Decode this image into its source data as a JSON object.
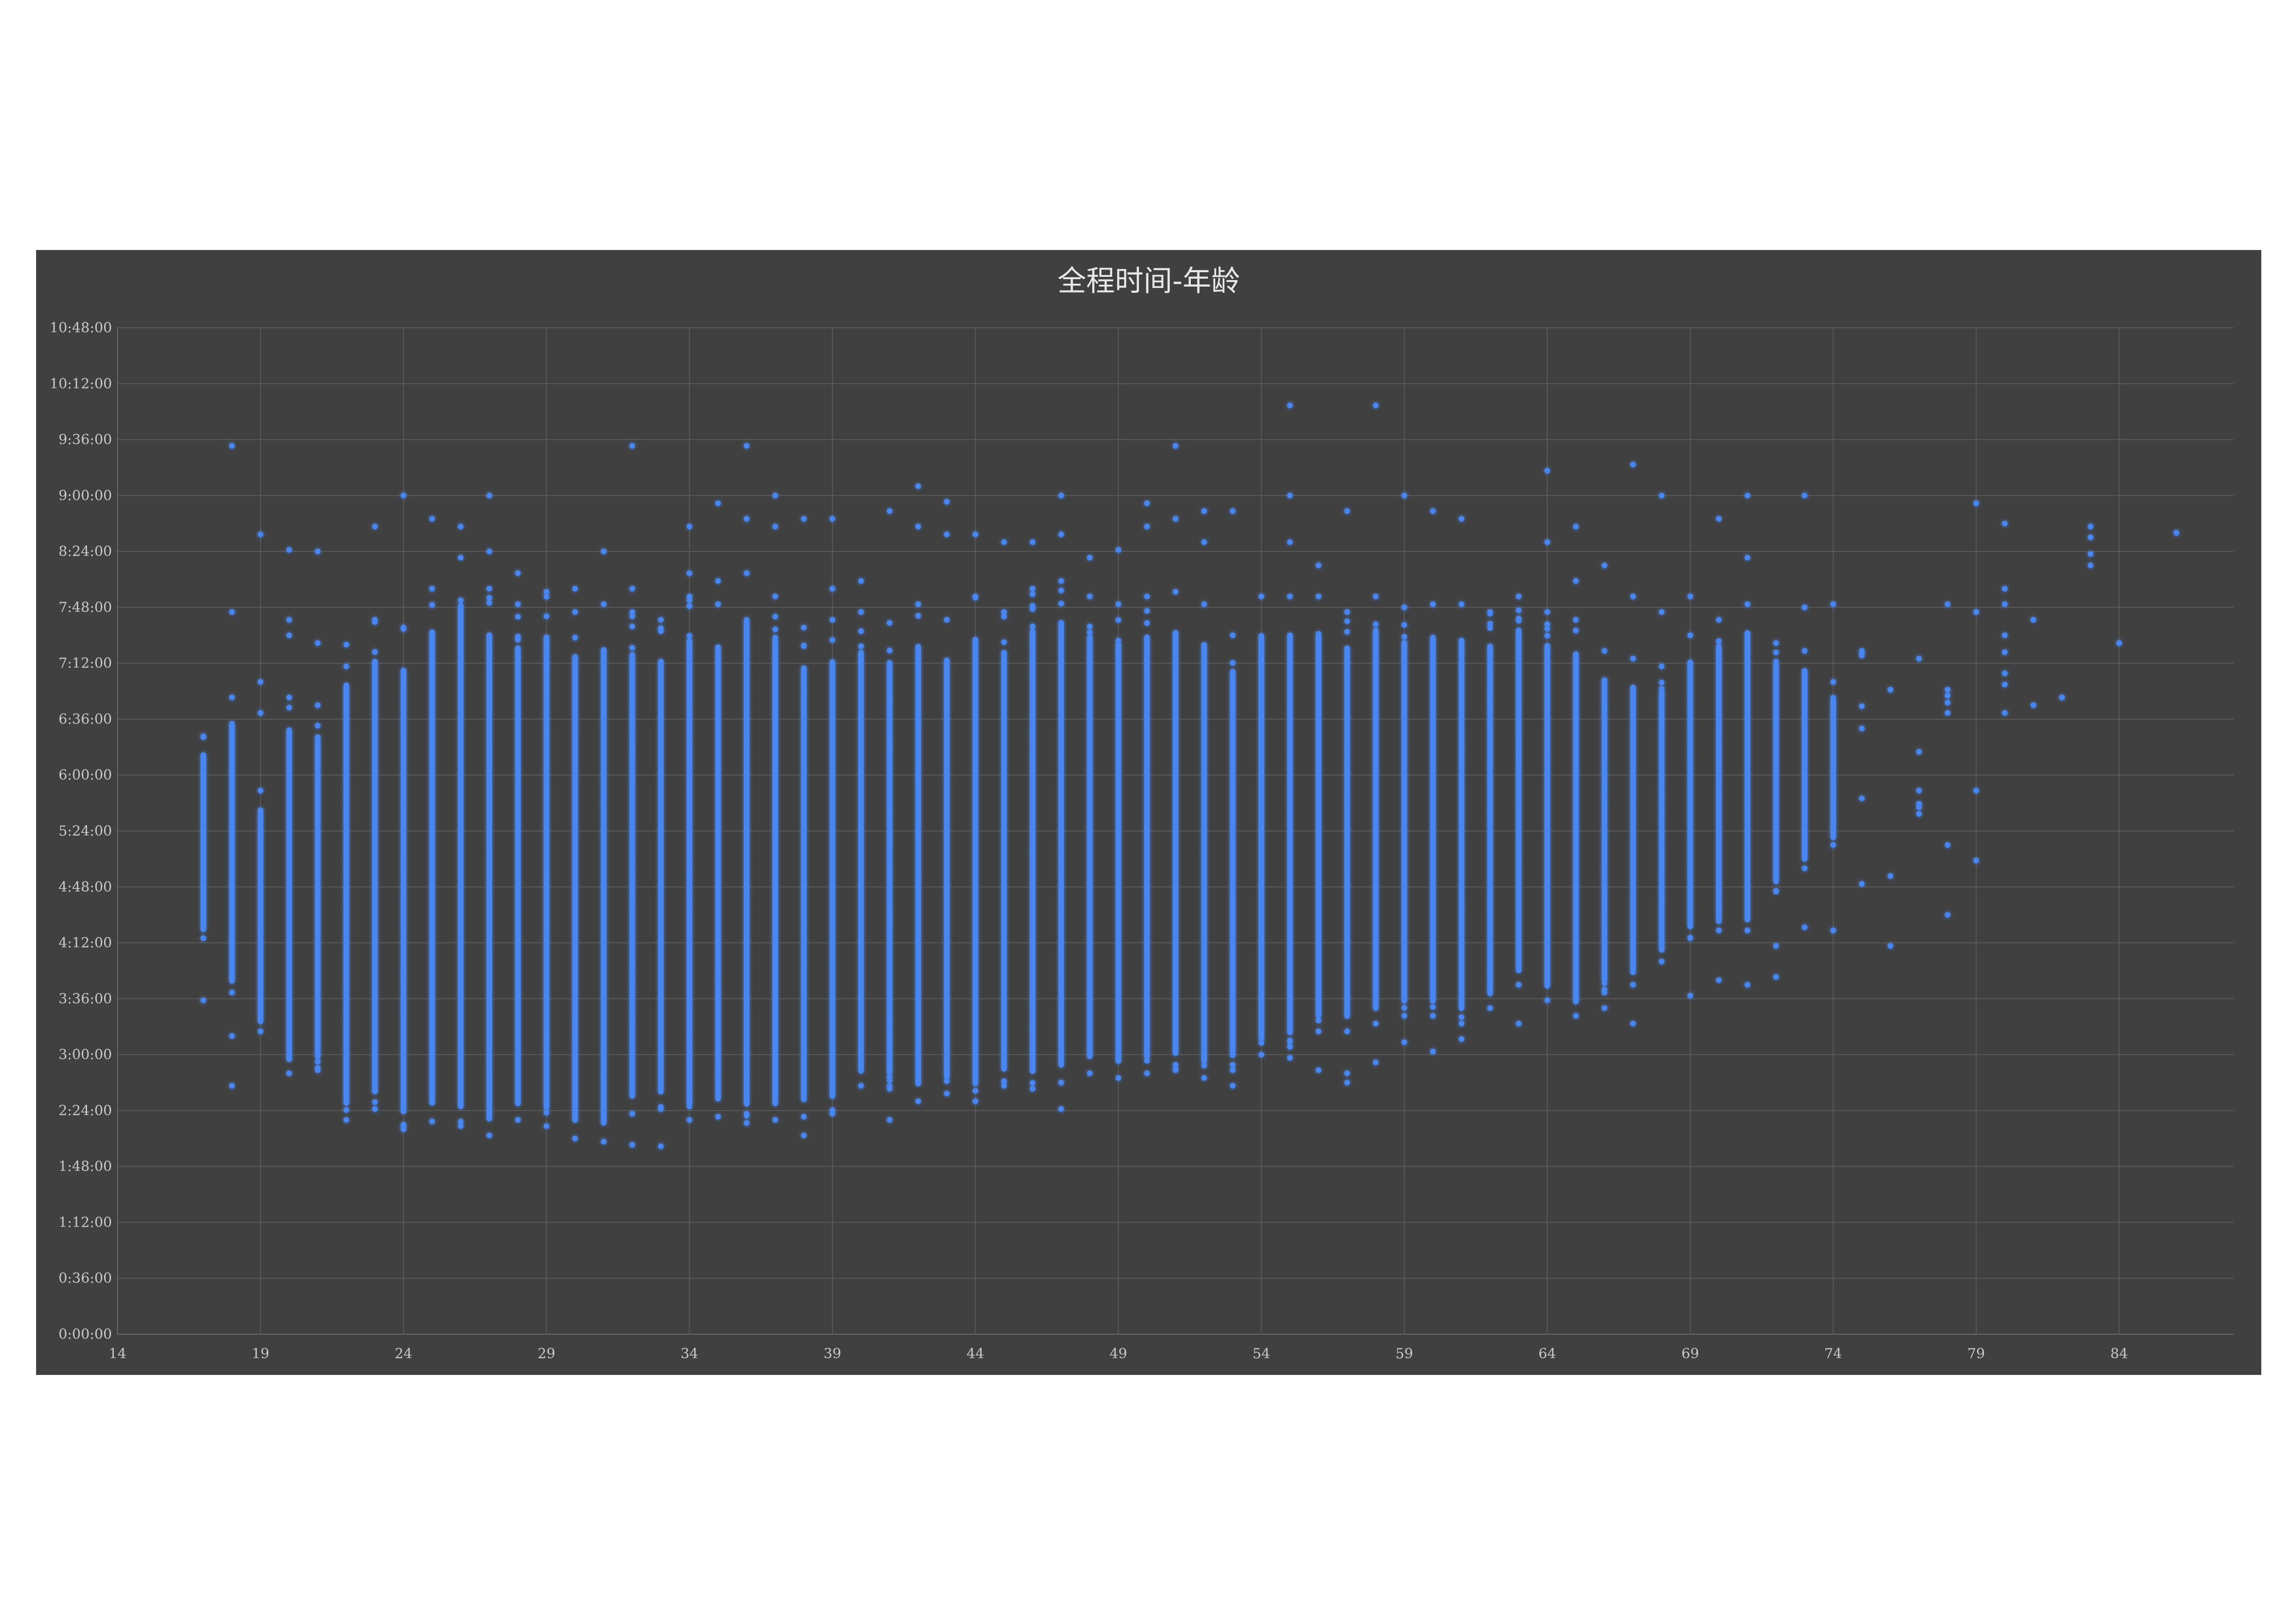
{
  "chart_data": {
    "type": "scatter",
    "title": "全程时间-年龄",
    "xlabel": "",
    "ylabel": "",
    "xlim": [
      14,
      88
    ],
    "ylim_seconds": [
      0,
      38880
    ],
    "x_ticks": [
      14,
      19,
      24,
      29,
      34,
      39,
      44,
      49,
      54,
      59,
      64,
      69,
      74,
      79,
      84
    ],
    "y_ticks": [
      "0:00:00",
      "0:36:00",
      "1:12:00",
      "1:48:00",
      "2:24:00",
      "3:00:00",
      "3:36:00",
      "4:12:00",
      "4:48:00",
      "5:24:00",
      "6:00:00",
      "6:36:00",
      "7:12:00",
      "7:48:00",
      "8:24:00",
      "9:00:00",
      "9:36:00",
      "10:12:00",
      "10:48:00"
    ],
    "grid": true,
    "legend": "none",
    "marker_color": "#4a86f0",
    "glow_color": "#2e5fd0",
    "series": [
      {
        "points_by_age": [
          {
            "age": 17,
            "min": "4:15:00",
            "max": "6:25:00",
            "outliers": [
              "3:35:00"
            ]
          },
          {
            "age": 18,
            "min": "3:40:00",
            "max": "6:50:00",
            "outliers": [
              "2:40:00",
              "3:12:00",
              "7:45:00",
              "9:32:00"
            ]
          },
          {
            "age": 19,
            "min": "3:15:00",
            "max": "5:50:00",
            "outliers": [
              "6:40:00",
              "7:00:00",
              "8:35:00"
            ]
          },
          {
            "age": 20,
            "min": "2:48:00",
            "max": "6:50:00",
            "outliers": [
              "7:30:00",
              "7:40:00",
              "8:25:00"
            ]
          },
          {
            "age": 21,
            "min": "2:50:00",
            "max": "6:45:00",
            "outliers": [
              "7:25:00",
              "8:24:00"
            ]
          },
          {
            "age": 22,
            "min": "2:18:00",
            "max": "7:24:00",
            "outliers": []
          },
          {
            "age": 23,
            "min": "2:25:00",
            "max": "7:40:00",
            "outliers": [
              "8:40:00"
            ]
          },
          {
            "age": 24,
            "min": "2:12:00",
            "max": "7:35:00",
            "outliers": [
              "9:00:00"
            ]
          },
          {
            "age": 25,
            "min": "2:17:00",
            "max": "8:00:00",
            "outliers": [
              "8:45:00"
            ]
          },
          {
            "age": 26,
            "min": "2:14:00",
            "max": "8:20:00",
            "outliers": [
              "8:40:00"
            ]
          },
          {
            "age": 27,
            "min": "2:08:00",
            "max": "8:00:00",
            "outliers": [
              "8:24:00",
              "9:00:00"
            ]
          },
          {
            "age": 28,
            "min": "2:18:00",
            "max": "7:50:00",
            "outliers": [
              "8:10:00"
            ]
          },
          {
            "age": 29,
            "min": "2:14:00",
            "max": "7:58:00",
            "outliers": []
          },
          {
            "age": 30,
            "min": "2:06:00",
            "max": "7:45:00",
            "outliers": [
              "8:00:00"
            ]
          },
          {
            "age": 31,
            "min": "2:04:00",
            "max": "7:50:00",
            "outliers": [
              "8:24:00"
            ]
          },
          {
            "age": 32,
            "min": "2:22:00",
            "max": "7:45:00",
            "outliers": [
              "2:02:00",
              "8:00:00",
              "9:32:00"
            ]
          },
          {
            "age": 33,
            "min": "2:25:00",
            "max": "7:40:00",
            "outliers": [
              "2:01:00"
            ]
          },
          {
            "age": 34,
            "min": "2:18:00",
            "max": "7:55:00",
            "outliers": [
              "8:10:00",
              "8:40:00"
            ]
          },
          {
            "age": 35,
            "min": "2:20:00",
            "max": "7:50:00",
            "outliers": [
              "8:05:00",
              "8:55:00"
            ]
          },
          {
            "age": 36,
            "min": "2:16:00",
            "max": "8:10:00",
            "outliers": [
              "8:45:00",
              "9:32:00"
            ]
          },
          {
            "age": 37,
            "min": "2:18:00",
            "max": "7:55:00",
            "outliers": [
              "8:40:00",
              "9:00:00"
            ]
          },
          {
            "age": 38,
            "min": "2:20:00",
            "max": "7:35:00",
            "outliers": [
              "2:08:00",
              "8:45:00"
            ]
          },
          {
            "age": 39,
            "min": "2:22:00",
            "max": "7:40:00",
            "outliers": [
              "8:00:00",
              "8:45:00"
            ]
          },
          {
            "age": 40,
            "min": "2:40:00",
            "max": "7:45:00",
            "outliers": [
              "8:05:00"
            ]
          },
          {
            "age": 41,
            "min": "2:38:00",
            "max": "7:38:00",
            "outliers": [
              "2:18:00",
              "8:50:00"
            ]
          },
          {
            "age": 42,
            "min": "2:30:00",
            "max": "7:50:00",
            "outliers": [
              "8:40:00",
              "9:06:00"
            ]
          },
          {
            "age": 43,
            "min": "2:35:00",
            "max": "7:40:00",
            "outliers": [
              "8:35:00",
              "8:56:00"
            ]
          },
          {
            "age": 44,
            "min": "2:30:00",
            "max": "7:55:00",
            "outliers": [
              "8:35:00"
            ]
          },
          {
            "age": 45,
            "min": "2:40:00",
            "max": "7:45:00",
            "outliers": [
              "8:30:00"
            ]
          },
          {
            "age": 46,
            "min": "2:38:00",
            "max": "8:00:00",
            "outliers": [
              "8:30:00"
            ]
          },
          {
            "age": 47,
            "min": "2:42:00",
            "max": "8:05:00",
            "outliers": [
              "2:25:00",
              "8:35:00",
              "9:00:00"
            ]
          },
          {
            "age": 48,
            "min": "2:48:00",
            "max": "7:55:00",
            "outliers": [
              "8:20:00"
            ]
          },
          {
            "age": 49,
            "min": "2:45:00",
            "max": "7:50:00",
            "outliers": [
              "8:25:00"
            ]
          },
          {
            "age": 50,
            "min": "2:48:00",
            "max": "7:55:00",
            "outliers": [
              "8:40:00",
              "8:55:00"
            ]
          },
          {
            "age": 51,
            "min": "2:50:00",
            "max": "7:58:00",
            "outliers": [
              "8:45:00",
              "9:32:00"
            ]
          },
          {
            "age": 52,
            "min": "2:45:00",
            "max": "7:50:00",
            "outliers": [
              "8:30:00",
              "8:50:00"
            ]
          },
          {
            "age": 53,
            "min": "2:50:00",
            "max": "7:30:00",
            "outliers": [
              "2:40:00",
              "8:50:00"
            ]
          },
          {
            "age": 54,
            "min": "3:00:00",
            "max": "7:55:00",
            "outliers": []
          },
          {
            "age": 55,
            "min": "3:05:00",
            "max": "7:55:00",
            "outliers": [
              "2:58:00",
              "8:30:00",
              "9:00:00",
              "9:58:00"
            ]
          },
          {
            "age": 56,
            "min": "3:15:00",
            "max": "7:55:00",
            "outliers": [
              "2:50:00",
              "8:15:00"
            ]
          },
          {
            "age": 57,
            "min": "3:15:00",
            "max": "7:45:00",
            "outliers": [
              "2:42:00",
              "2:48:00",
              "8:50:00"
            ]
          },
          {
            "age": 58,
            "min": "3:20:00",
            "max": "7:55:00",
            "outliers": [
              "2:55:00",
              "9:58:00"
            ]
          },
          {
            "age": 59,
            "min": "3:25:00",
            "max": "7:48:00",
            "outliers": [
              "3:08:00",
              "9:00:00"
            ]
          },
          {
            "age": 60,
            "min": "3:25:00",
            "max": "7:50:00",
            "outliers": [
              "3:02:00",
              "8:50:00"
            ]
          },
          {
            "age": 61,
            "min": "3:20:00",
            "max": "7:50:00",
            "outliers": [
              "3:10:00",
              "8:45:00"
            ]
          },
          {
            "age": 62,
            "min": "3:30:00",
            "max": "7:45:00",
            "outliers": []
          },
          {
            "age": 63,
            "min": "3:45:00",
            "max": "7:55:00",
            "outliers": [
              "3:20:00"
            ]
          },
          {
            "age": 64,
            "min": "3:35:00",
            "max": "7:45:00",
            "outliers": [
              "8:30:00",
              "9:16:00"
            ]
          },
          {
            "age": 65,
            "min": "3:25:00",
            "max": "7:40:00",
            "outliers": [
              "8:05:00",
              "8:40:00"
            ]
          },
          {
            "age": 66,
            "min": "3:40:00",
            "max": "7:20:00",
            "outliers": [
              "3:30:00",
              "8:15:00"
            ]
          },
          {
            "age": 67,
            "min": "3:45:00",
            "max": "7:15:00",
            "outliers": [
              "3:20:00",
              "7:55:00",
              "9:20:00"
            ]
          },
          {
            "age": 68,
            "min": "4:00:00",
            "max": "7:10:00",
            "outliers": [
              "7:45:00",
              "9:00:00"
            ]
          },
          {
            "age": 69,
            "min": "4:15:00",
            "max": "7:30:00",
            "outliers": [
              "3:38:00",
              "7:55:00"
            ]
          },
          {
            "age": 70,
            "min": "4:20:00",
            "max": "7:40:00",
            "outliers": [
              "3:48:00",
              "8:45:00"
            ]
          },
          {
            "age": 71,
            "min": "4:20:00",
            "max": "7:50:00",
            "outliers": [
              "3:45:00",
              "8:20:00",
              "9:00:00"
            ]
          },
          {
            "age": 72,
            "min": "4:45:00",
            "max": "7:25:00",
            "outliers": [
              "3:50:00",
              "4:10:00"
            ]
          },
          {
            "age": 73,
            "min": "5:00:00",
            "max": "7:20:00",
            "outliers": [
              "4:22:00",
              "7:48:00",
              "9:00:00"
            ]
          },
          {
            "age": 74,
            "min": "5:15:00",
            "max": "7:00:00",
            "outliers": [
              "4:20:00",
              "7:50:00"
            ]
          },
          {
            "age": 75,
            "min": "6:30:00",
            "max": "7:20:00",
            "outliers": [
              "4:50:00",
              "5:45:00"
            ]
          },
          {
            "age": 76,
            "min": "6:55:00",
            "max": "6:55:00",
            "outliers": [
              "4:10:00",
              "4:55:00"
            ]
          },
          {
            "age": 77,
            "min": "5:35:00",
            "max": "5:50:00",
            "outliers": [
              "6:15:00",
              "7:15:00"
            ]
          },
          {
            "age": 78,
            "min": "6:40:00",
            "max": "6:55:00",
            "outliers": [
              "4:30:00",
              "5:15:00",
              "7:50:00"
            ]
          },
          {
            "age": 79,
            "min": "7:45:00",
            "max": "7:45:00",
            "outliers": [
              "5:05:00",
              "5:50:00",
              "8:55:00"
            ]
          },
          {
            "age": 80,
            "min": "6:40:00",
            "max": "7:30:00",
            "outliers": [
              "7:50:00",
              "8:00:00",
              "8:42:00"
            ]
          },
          {
            "age": 81,
            "min": "7:40:00",
            "max": "7:40:00",
            "outliers": [
              "6:45:00"
            ]
          },
          {
            "age": 82,
            "min": "6:50:00",
            "max": "6:50:00",
            "outliers": []
          },
          {
            "age": 83,
            "min": "8:15:00",
            "max": "8:40:00",
            "outliers": []
          },
          {
            "age": 84,
            "min": "7:25:00",
            "max": "7:25:00",
            "outliers": []
          },
          {
            "age": 86,
            "min": "8:36:00",
            "max": "8:36:00",
            "outliers": []
          }
        ]
      }
    ]
  }
}
